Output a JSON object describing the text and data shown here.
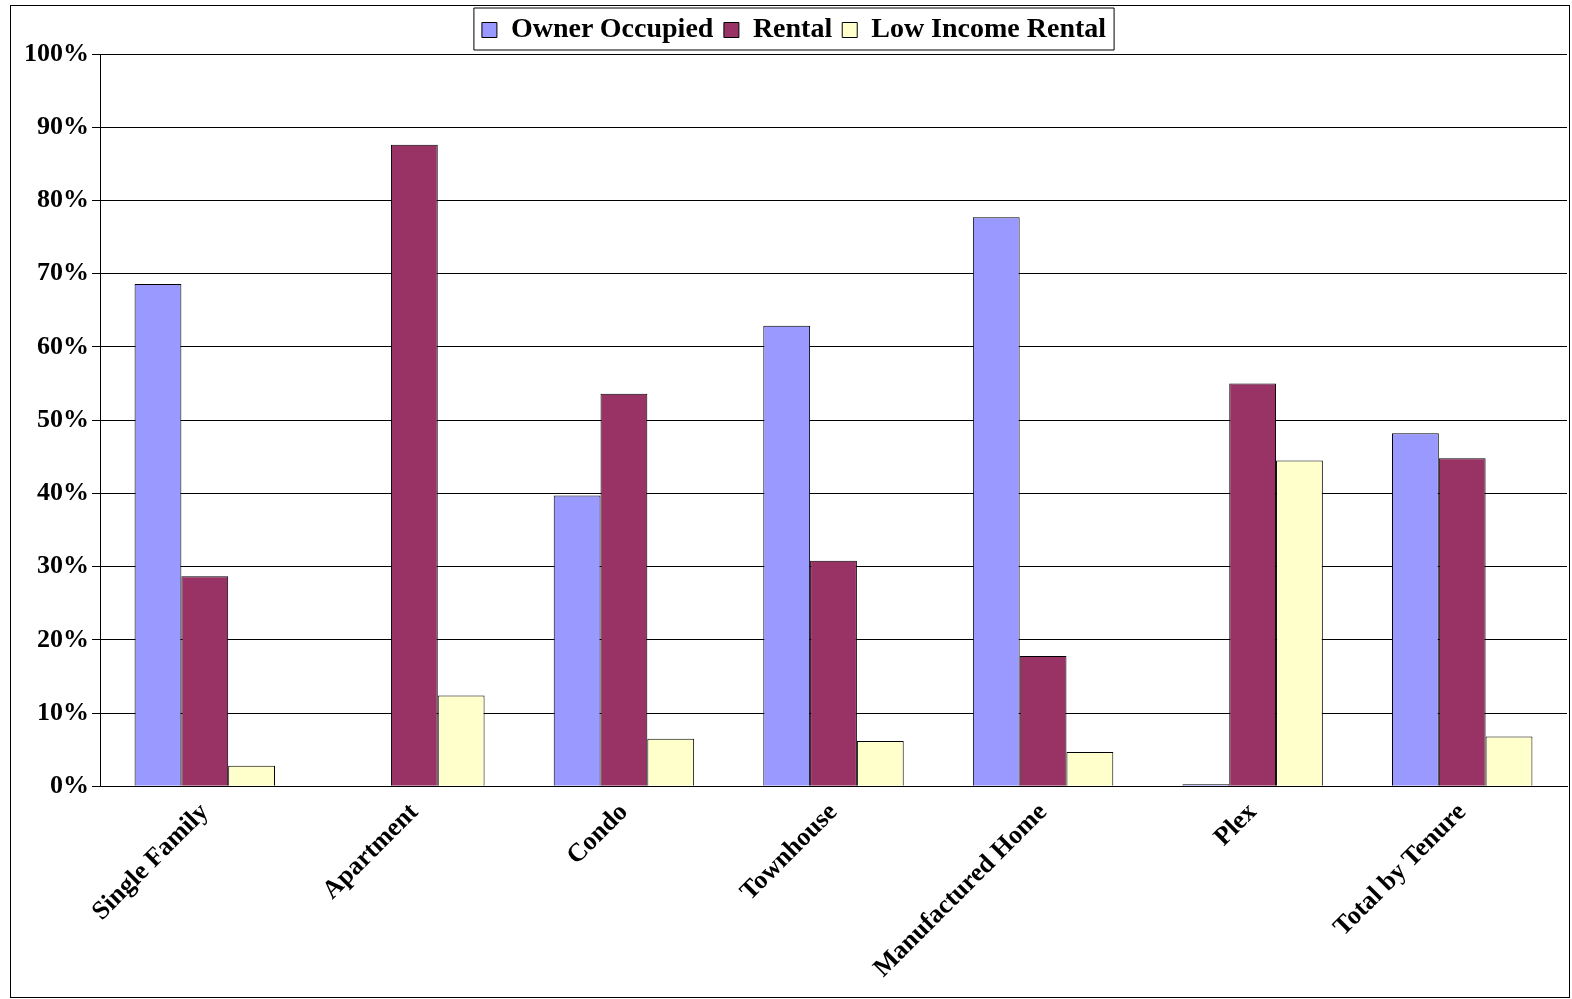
{
  "chart_data": {
    "type": "bar",
    "categories": [
      "Single Family",
      "Apartment",
      "Condo",
      "Townhouse",
      "Manufactured Home",
      "Plex",
      "Total by Tenure"
    ],
    "series": [
      {
        "name": "Owner Occupied",
        "color": "#9999ff",
        "values": [
          68.6,
          0,
          39.7,
          62.9,
          77.7,
          0.3,
          48.2
        ]
      },
      {
        "name": "Rental",
        "color": "#993366",
        "values": [
          28.7,
          87.6,
          53.6,
          30.8,
          17.8,
          55.0,
          44.8
        ]
      },
      {
        "name": "Low Income Rental",
        "color": "#ffffcc",
        "values": [
          2.8,
          12.4,
          6.5,
          6.2,
          4.7,
          44.5,
          6.8
        ]
      }
    ],
    "ylim": [
      0,
      100
    ],
    "yticks": [
      {
        "value": 0,
        "label": "0%"
      },
      {
        "value": 10,
        "label": "10%"
      },
      {
        "value": 20,
        "label": "20%"
      },
      {
        "value": 30,
        "label": "30%"
      },
      {
        "value": 40,
        "label": "40%"
      },
      {
        "value": 50,
        "label": "50%"
      },
      {
        "value": 60,
        "label": "60%"
      },
      {
        "value": 70,
        "label": "70%"
      },
      {
        "value": 80,
        "label": "80%"
      },
      {
        "value": 90,
        "label": "90%"
      },
      {
        "value": 100,
        "label": "100%"
      }
    ],
    "grid": "y",
    "legend": "top"
  }
}
